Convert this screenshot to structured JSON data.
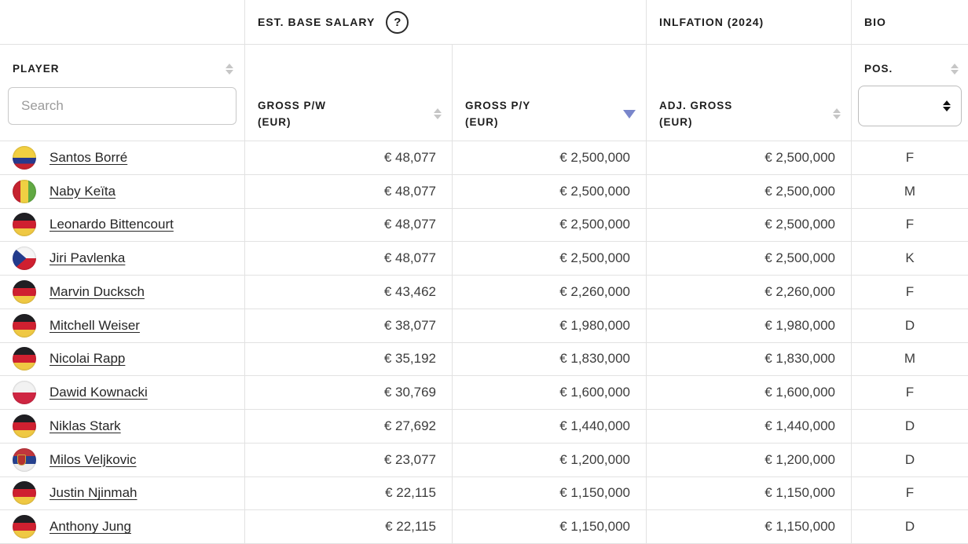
{
  "header": {
    "groups": [
      {
        "id": "est_base_salary",
        "label": "EST. BASE SALARY",
        "help": "?"
      },
      {
        "id": "inflation",
        "label": "INLFATION (2024)"
      },
      {
        "id": "bio",
        "label": "BIO"
      }
    ]
  },
  "columns": {
    "player": {
      "label": "PLAYER"
    },
    "gross_pw": {
      "label_line1": "GROSS P/W",
      "label_line2": "(EUR)"
    },
    "gross_py": {
      "label_line1": "GROSS P/Y",
      "label_line2": "(EUR)"
    },
    "adj_gross": {
      "label_line1": "ADJ. GROSS",
      "label_line2": "(EUR)"
    },
    "pos": {
      "label": "POS.",
      "filter_value": ""
    }
  },
  "search": {
    "placeholder": "Search",
    "value": ""
  },
  "sort": {
    "active_column": "gross_py",
    "direction": "desc"
  },
  "colors": {
    "sort_active": "#7986cb",
    "sort_inactive": "#c6c6c6",
    "border": "#e2e2e2",
    "header_text": "#1d1d1d",
    "body_text": "#3c3c3c"
  },
  "rows": [
    {
      "flag": "colombia",
      "player": "Santos Borré",
      "gross_pw": "€ 48,077",
      "gross_py": "€ 2,500,000",
      "adj_gross": "€ 2,500,000",
      "pos": "F"
    },
    {
      "flag": "guinea",
      "player": "Naby Keïta",
      "gross_pw": "€ 48,077",
      "gross_py": "€ 2,500,000",
      "adj_gross": "€ 2,500,000",
      "pos": "M"
    },
    {
      "flag": "germany",
      "player": "Leonardo Bittencourt",
      "gross_pw": "€ 48,077",
      "gross_py": "€ 2,500,000",
      "adj_gross": "€ 2,500,000",
      "pos": "F"
    },
    {
      "flag": "czechia",
      "player": "Jiri Pavlenka",
      "gross_pw": "€ 48,077",
      "gross_py": "€ 2,500,000",
      "adj_gross": "€ 2,500,000",
      "pos": "K"
    },
    {
      "flag": "germany",
      "player": "Marvin Ducksch",
      "gross_pw": "€ 43,462",
      "gross_py": "€ 2,260,000",
      "adj_gross": "€ 2,260,000",
      "pos": "F"
    },
    {
      "flag": "germany",
      "player": "Mitchell Weiser",
      "gross_pw": "€ 38,077",
      "gross_py": "€ 1,980,000",
      "adj_gross": "€ 1,980,000",
      "pos": "D"
    },
    {
      "flag": "germany",
      "player": "Nicolai Rapp",
      "gross_pw": "€ 35,192",
      "gross_py": "€ 1,830,000",
      "adj_gross": "€ 1,830,000",
      "pos": "M"
    },
    {
      "flag": "poland",
      "player": "Dawid Kownacki",
      "gross_pw": "€ 30,769",
      "gross_py": "€ 1,600,000",
      "adj_gross": "€ 1,600,000",
      "pos": "F"
    },
    {
      "flag": "germany",
      "player": "Niklas Stark",
      "gross_pw": "€ 27,692",
      "gross_py": "€ 1,440,000",
      "adj_gross": "€ 1,440,000",
      "pos": "D"
    },
    {
      "flag": "serbia",
      "player": "Milos Veljkovic",
      "gross_pw": "€ 23,077",
      "gross_py": "€ 1,200,000",
      "adj_gross": "€ 1,200,000",
      "pos": "D"
    },
    {
      "flag": "germany",
      "player": "Justin Njinmah",
      "gross_pw": "€ 22,115",
      "gross_py": "€ 1,150,000",
      "adj_gross": "€ 1,150,000",
      "pos": "F"
    },
    {
      "flag": "germany",
      "player": "Anthony Jung",
      "gross_pw": "€ 22,115",
      "gross_py": "€ 1,150,000",
      "adj_gross": "€ 1,150,000",
      "pos": "D"
    }
  ]
}
